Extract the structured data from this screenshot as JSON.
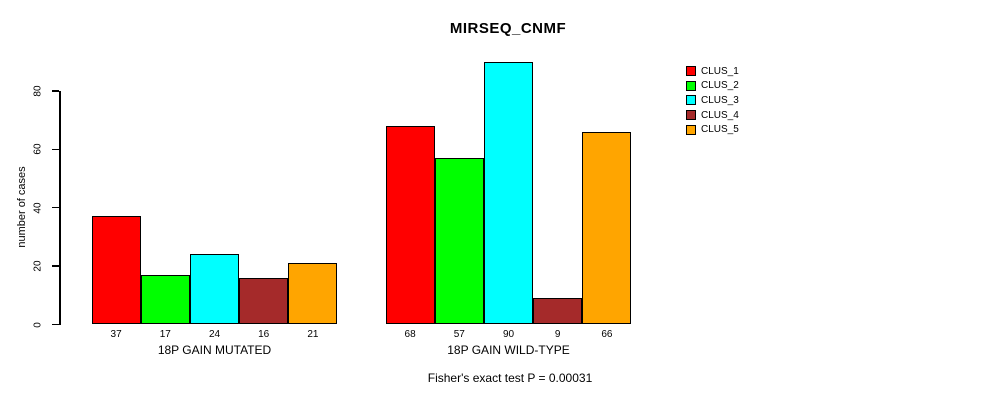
{
  "chart_data": {
    "type": "bar",
    "title": "MIRSEQ_CNMF",
    "ylabel": "number of cases",
    "xlabel": "",
    "ylim": [
      0,
      92
    ],
    "yticks": [
      0,
      20,
      40,
      60,
      80
    ],
    "grid": false,
    "legend_position": "right",
    "series": [
      {
        "name": "CLUS_1",
        "color": "#FF0000"
      },
      {
        "name": "CLUS_2",
        "color": "#00FF00"
      },
      {
        "name": "CLUS_3",
        "color": "#00FFFF"
      },
      {
        "name": "CLUS_4",
        "color": "#A52A2A"
      },
      {
        "name": "CLUS_5",
        "color": "#FFA500"
      }
    ],
    "groups": [
      {
        "label": "18P GAIN MUTATED",
        "values": [
          37,
          17,
          24,
          16,
          21
        ]
      },
      {
        "label": "18P GAIN WILD-TYPE",
        "values": [
          68,
          57,
          90,
          9,
          66
        ]
      }
    ],
    "annotation": "Fisher's exact test P = 0.00031"
  }
}
